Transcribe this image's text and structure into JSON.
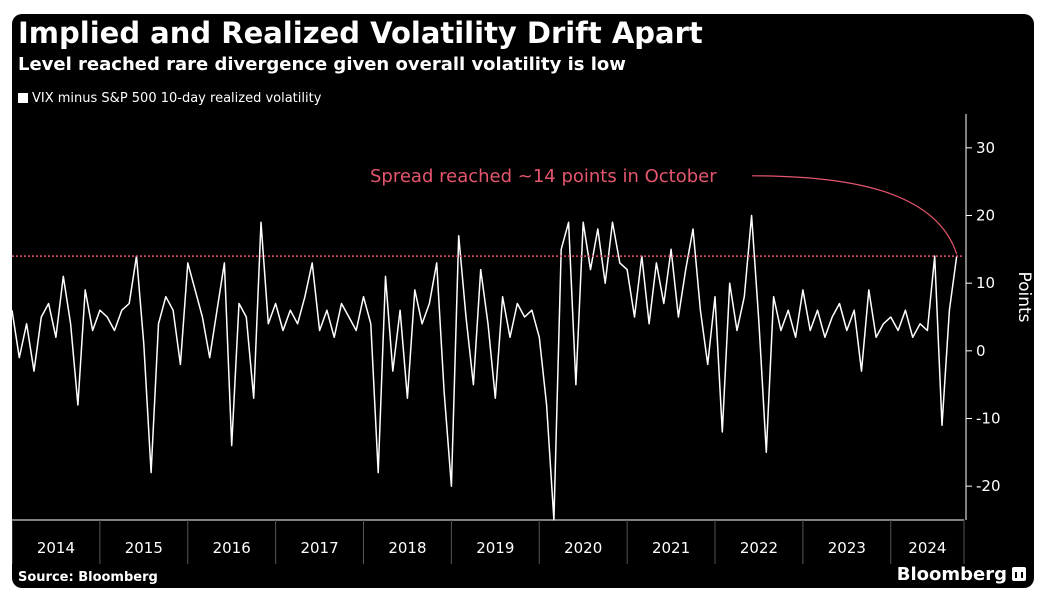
{
  "header": {
    "title": "Implied and Realized Volatility Drift Apart",
    "subtitle": "Level reached rare divergence given overall volatility is low"
  },
  "legend": {
    "label": "VIX minus S&P 500 10-day realized volatility"
  },
  "footer": {
    "source": "Source: Bloomberg",
    "brand": "Bloomberg"
  },
  "colors": {
    "background": "#000000",
    "series": "#ffffff",
    "annotation": "#e5566e",
    "axis": "#ffffff"
  },
  "chart_data": {
    "type": "line",
    "title": "Implied and Realized Volatility Drift Apart",
    "subtitle": "Level reached rare divergence given overall volatility is low",
    "ylabel": "Points",
    "ylim": [
      -25,
      35
    ],
    "xlim": [
      "2014-01-01",
      "2024-11-01"
    ],
    "y_ticks": [
      -20,
      -10,
      0,
      10,
      20,
      30
    ],
    "x_ticks": [
      "2014",
      "2015",
      "2016",
      "2017",
      "2018",
      "2019",
      "2020",
      "2021",
      "2022",
      "2023",
      "2024"
    ],
    "reference_line": {
      "y": 14,
      "style": "dotted"
    },
    "annotation": {
      "text": "Spread reached ~14 points in October",
      "x": "2024-10",
      "y": 14
    },
    "legend_position": "top-left",
    "grid": false,
    "series": [
      {
        "name": "VIX minus S&P 500 10-day realized volatility",
        "points": [
          [
            "2014-01",
            6
          ],
          [
            "2014-02",
            -1
          ],
          [
            "2014-03",
            4
          ],
          [
            "2014-04",
            -3
          ],
          [
            "2014-05",
            5
          ],
          [
            "2014-06",
            7
          ],
          [
            "2014-07",
            2
          ],
          [
            "2014-08",
            11
          ],
          [
            "2014-09",
            4
          ],
          [
            "2014-10",
            -8
          ],
          [
            "2014-11",
            9
          ],
          [
            "2014-12",
            3
          ],
          [
            "2015-01",
            6
          ],
          [
            "2015-02",
            5
          ],
          [
            "2015-03",
            3
          ],
          [
            "2015-04",
            6
          ],
          [
            "2015-05",
            7
          ],
          [
            "2015-06",
            14
          ],
          [
            "2015-07",
            1
          ],
          [
            "2015-08",
            -18
          ],
          [
            "2015-09",
            4
          ],
          [
            "2015-10",
            8
          ],
          [
            "2015-11",
            6
          ],
          [
            "2015-12",
            -2
          ],
          [
            "2016-01",
            13
          ],
          [
            "2016-02",
            9
          ],
          [
            "2016-03",
            5
          ],
          [
            "2016-04",
            -1
          ],
          [
            "2016-05",
            6
          ],
          [
            "2016-06",
            13
          ],
          [
            "2016-07",
            -14
          ],
          [
            "2016-08",
            7
          ],
          [
            "2016-09",
            5
          ],
          [
            "2016-10",
            -7
          ],
          [
            "2016-11",
            19
          ],
          [
            "2016-12",
            4
          ],
          [
            "2017-01",
            7
          ],
          [
            "2017-02",
            3
          ],
          [
            "2017-03",
            6
          ],
          [
            "2017-04",
            4
          ],
          [
            "2017-05",
            8
          ],
          [
            "2017-06",
            13
          ],
          [
            "2017-07",
            3
          ],
          [
            "2017-08",
            6
          ],
          [
            "2017-09",
            2
          ],
          [
            "2017-10",
            7
          ],
          [
            "2017-11",
            5
          ],
          [
            "2017-12",
            3
          ],
          [
            "2018-01",
            8
          ],
          [
            "2018-02",
            4
          ],
          [
            "2018-03",
            -18
          ],
          [
            "2018-04",
            11
          ],
          [
            "2018-05",
            -3
          ],
          [
            "2018-06",
            6
          ],
          [
            "2018-07",
            -7
          ],
          [
            "2018-08",
            9
          ],
          [
            "2018-09",
            4
          ],
          [
            "2018-10",
            7
          ],
          [
            "2018-11",
            13
          ],
          [
            "2018-12",
            -6
          ],
          [
            "2019-01",
            -20
          ],
          [
            "2019-02",
            17
          ],
          [
            "2019-03",
            5
          ],
          [
            "2019-04",
            -5
          ],
          [
            "2019-05",
            12
          ],
          [
            "2019-06",
            4
          ],
          [
            "2019-07",
            -7
          ],
          [
            "2019-08",
            8
          ],
          [
            "2019-09",
            2
          ],
          [
            "2019-10",
            7
          ],
          [
            "2019-11",
            5
          ],
          [
            "2019-12",
            6
          ],
          [
            "2020-01",
            2
          ],
          [
            "2020-02",
            -8
          ],
          [
            "2020-03",
            -25
          ],
          [
            "2020-04",
            15
          ],
          [
            "2020-05",
            19
          ],
          [
            "2020-06",
            -5
          ],
          [
            "2020-07",
            19
          ],
          [
            "2020-08",
            12
          ],
          [
            "2020-09",
            18
          ],
          [
            "2020-10",
            10
          ],
          [
            "2020-11",
            19
          ],
          [
            "2020-12",
            13
          ],
          [
            "2021-01",
            12
          ],
          [
            "2021-02",
            5
          ],
          [
            "2021-03",
            14
          ],
          [
            "2021-04",
            4
          ],
          [
            "2021-05",
            13
          ],
          [
            "2021-06",
            7
          ],
          [
            "2021-07",
            15
          ],
          [
            "2021-08",
            5
          ],
          [
            "2021-09",
            12
          ],
          [
            "2021-10",
            18
          ],
          [
            "2021-11",
            6
          ],
          [
            "2021-12",
            -2
          ],
          [
            "2022-01",
            8
          ],
          [
            "2022-02",
            -12
          ],
          [
            "2022-03",
            10
          ],
          [
            "2022-04",
            3
          ],
          [
            "2022-05",
            8
          ],
          [
            "2022-06",
            20
          ],
          [
            "2022-07",
            4
          ],
          [
            "2022-08",
            -15
          ],
          [
            "2022-09",
            8
          ],
          [
            "2022-10",
            3
          ],
          [
            "2022-11",
            6
          ],
          [
            "2022-12",
            2
          ],
          [
            "2023-01",
            9
          ],
          [
            "2023-02",
            3
          ],
          [
            "2023-03",
            6
          ],
          [
            "2023-04",
            2
          ],
          [
            "2023-05",
            5
          ],
          [
            "2023-06",
            7
          ],
          [
            "2023-07",
            3
          ],
          [
            "2023-08",
            6
          ],
          [
            "2023-09",
            -3
          ],
          [
            "2023-10",
            9
          ],
          [
            "2023-11",
            2
          ],
          [
            "2023-12",
            4
          ],
          [
            "2024-01",
            5
          ],
          [
            "2024-02",
            3
          ],
          [
            "2024-03",
            6
          ],
          [
            "2024-04",
            2
          ],
          [
            "2024-05",
            4
          ],
          [
            "2024-06",
            3
          ],
          [
            "2024-07",
            14
          ],
          [
            "2024-08",
            -11
          ],
          [
            "2024-09",
            6
          ],
          [
            "2024-10",
            14
          ]
        ]
      }
    ]
  }
}
